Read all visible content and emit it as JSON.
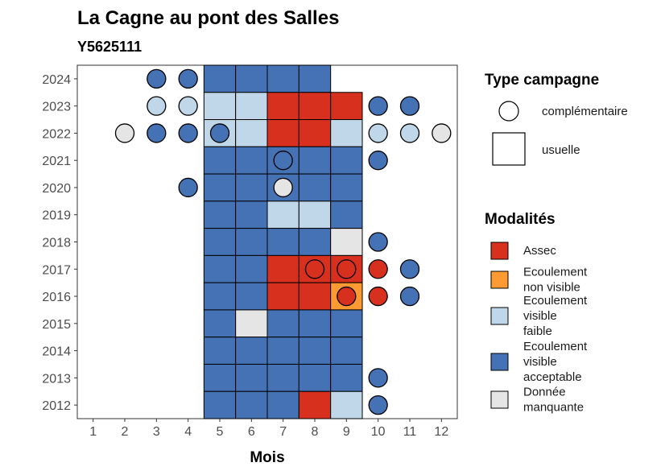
{
  "chart_data": {
    "type": "heatmap",
    "title": "La Cagne au pont des Salles",
    "subtitle": "Y5625111",
    "xlabel": "Mois",
    "ylabel": "",
    "x_ticks": [
      1,
      2,
      3,
      4,
      5,
      6,
      7,
      8,
      9,
      10,
      11,
      12
    ],
    "y_ticks": [
      2012,
      2013,
      2014,
      2015,
      2016,
      2017,
      2018,
      2019,
      2020,
      2021,
      2022,
      2023,
      2024
    ],
    "xlim": [
      0.5,
      12.5
    ],
    "ylim": [
      2011.5,
      2024.5
    ],
    "grid": false,
    "legend_position": "right",
    "colors": {
      "Assec": "#d7301f",
      "Ecoulement non visible": "#fd9b32",
      "Ecoulement visible faible": "#bfd7e8",
      "Ecoulement visible acceptable": "#4472b4",
      "Donnée manquante": "#e5e5e5"
    },
    "legend": {
      "type_title": "Type campagne",
      "type_items": [
        "complémentaire",
        "usuelle"
      ],
      "mod_title": "Modalités",
      "mod_items": [
        {
          "key": "Assec",
          "lines": [
            "Assec"
          ]
        },
        {
          "key": "Ecoulement non visible",
          "lines": [
            "Ecoulement",
            "non visible"
          ]
        },
        {
          "key": "Ecoulement visible faible",
          "lines": [
            "Ecoulement",
            "visible",
            "faible"
          ]
        },
        {
          "key": "Ecoulement visible acceptable",
          "lines": [
            "Ecoulement",
            "visible",
            "acceptable"
          ]
        },
        {
          "key": "Donnée manquante",
          "lines": [
            "Donnée",
            "manquante"
          ]
        }
      ]
    },
    "usuelle": [
      {
        "year": 2024,
        "cells": {
          "5": "Ecoulement visible acceptable",
          "6": "Ecoulement visible acceptable",
          "7": "Ecoulement visible acceptable",
          "8": "Ecoulement visible acceptable"
        }
      },
      {
        "year": 2023,
        "cells": {
          "5": "Ecoulement visible faible",
          "6": "Ecoulement visible faible",
          "7": "Assec",
          "8": "Assec",
          "9": "Assec"
        }
      },
      {
        "year": 2022,
        "cells": {
          "5": "Ecoulement visible faible",
          "6": "Ecoulement visible faible",
          "7": "Assec",
          "8": "Assec",
          "9": "Ecoulement visible faible"
        }
      },
      {
        "year": 2021,
        "cells": {
          "5": "Ecoulement visible acceptable",
          "6": "Ecoulement visible acceptable",
          "7": "Ecoulement visible acceptable",
          "8": "Ecoulement visible acceptable",
          "9": "Ecoulement visible acceptable"
        }
      },
      {
        "year": 2020,
        "cells": {
          "5": "Ecoulement visible acceptable",
          "6": "Ecoulement visible acceptable",
          "7": "Ecoulement visible acceptable",
          "8": "Ecoulement visible acceptable",
          "9": "Ecoulement visible acceptable"
        }
      },
      {
        "year": 2019,
        "cells": {
          "5": "Ecoulement visible acceptable",
          "6": "Ecoulement visible acceptable",
          "7": "Ecoulement visible faible",
          "8": "Ecoulement visible faible",
          "9": "Ecoulement visible acceptable"
        }
      },
      {
        "year": 2018,
        "cells": {
          "5": "Ecoulement visible acceptable",
          "6": "Ecoulement visible acceptable",
          "7": "Ecoulement visible acceptable",
          "8": "Ecoulement visible acceptable",
          "9": "Donnée manquante"
        }
      },
      {
        "year": 2017,
        "cells": {
          "5": "Ecoulement visible acceptable",
          "6": "Ecoulement visible acceptable",
          "7": "Assec",
          "8": "Assec",
          "9": "Assec"
        }
      },
      {
        "year": 2016,
        "cells": {
          "5": "Ecoulement visible acceptable",
          "6": "Ecoulement visible acceptable",
          "7": "Assec",
          "8": "Assec",
          "9": "Ecoulement non visible"
        }
      },
      {
        "year": 2015,
        "cells": {
          "5": "Ecoulement visible acceptable",
          "6": "Donnée manquante",
          "7": "Ecoulement visible acceptable",
          "8": "Ecoulement visible acceptable",
          "9": "Ecoulement visible acceptable"
        }
      },
      {
        "year": 2014,
        "cells": {
          "5": "Ecoulement visible acceptable",
          "6": "Ecoulement visible acceptable",
          "7": "Ecoulement visible acceptable",
          "8": "Ecoulement visible acceptable",
          "9": "Ecoulement visible acceptable"
        }
      },
      {
        "year": 2013,
        "cells": {
          "5": "Ecoulement visible acceptable",
          "6": "Ecoulement visible acceptable",
          "7": "Ecoulement visible acceptable",
          "8": "Ecoulement visible acceptable",
          "9": "Ecoulement visible acceptable"
        }
      },
      {
        "year": 2012,
        "cells": {
          "5": "Ecoulement visible acceptable",
          "6": "Ecoulement visible acceptable",
          "7": "Ecoulement visible acceptable",
          "8": "Assec",
          "9": "Ecoulement visible faible"
        }
      }
    ],
    "complementaire": [
      {
        "year": 2024,
        "month": 3,
        "value": "Ecoulement visible acceptable"
      },
      {
        "year": 2024,
        "month": 4,
        "value": "Ecoulement visible acceptable"
      },
      {
        "year": 2023,
        "month": 3,
        "value": "Ecoulement visible faible"
      },
      {
        "year": 2023,
        "month": 4,
        "value": "Ecoulement visible faible"
      },
      {
        "year": 2023,
        "month": 10,
        "value": "Ecoulement visible acceptable"
      },
      {
        "year": 2023,
        "month": 11,
        "value": "Ecoulement visible acceptable"
      },
      {
        "year": 2022,
        "month": 2,
        "value": "Donnée manquante"
      },
      {
        "year": 2022,
        "month": 3,
        "value": "Ecoulement visible acceptable"
      },
      {
        "year": 2022,
        "month": 4,
        "value": "Ecoulement visible acceptable"
      },
      {
        "year": 2022,
        "month": 5,
        "value": "Ecoulement visible acceptable"
      },
      {
        "year": 2022,
        "month": 10,
        "value": "Ecoulement visible faible"
      },
      {
        "year": 2022,
        "month": 11,
        "value": "Ecoulement visible faible"
      },
      {
        "year": 2022,
        "month": 12,
        "value": "Donnée manquante"
      },
      {
        "year": 2021,
        "month": 7,
        "value": "Ecoulement visible acceptable"
      },
      {
        "year": 2021,
        "month": 10,
        "value": "Ecoulement visible acceptable"
      },
      {
        "year": 2020,
        "month": 4,
        "value": "Ecoulement visible acceptable"
      },
      {
        "year": 2020,
        "month": 7,
        "value": "Donnée manquante"
      },
      {
        "year": 2018,
        "month": 10,
        "value": "Ecoulement visible acceptable"
      },
      {
        "year": 2017,
        "month": 8,
        "value": "Assec"
      },
      {
        "year": 2017,
        "month": 9,
        "value": "Assec"
      },
      {
        "year": 2017,
        "month": 10,
        "value": "Assec"
      },
      {
        "year": 2017,
        "month": 11,
        "value": "Ecoulement visible acceptable"
      },
      {
        "year": 2016,
        "month": 9,
        "value": "Assec"
      },
      {
        "year": 2016,
        "month": 10,
        "value": "Assec"
      },
      {
        "year": 2016,
        "month": 11,
        "value": "Ecoulement visible acceptable"
      },
      {
        "year": 2013,
        "month": 10,
        "value": "Ecoulement visible acceptable"
      },
      {
        "year": 2012,
        "month": 10,
        "value": "Ecoulement visible acceptable"
      }
    ]
  }
}
